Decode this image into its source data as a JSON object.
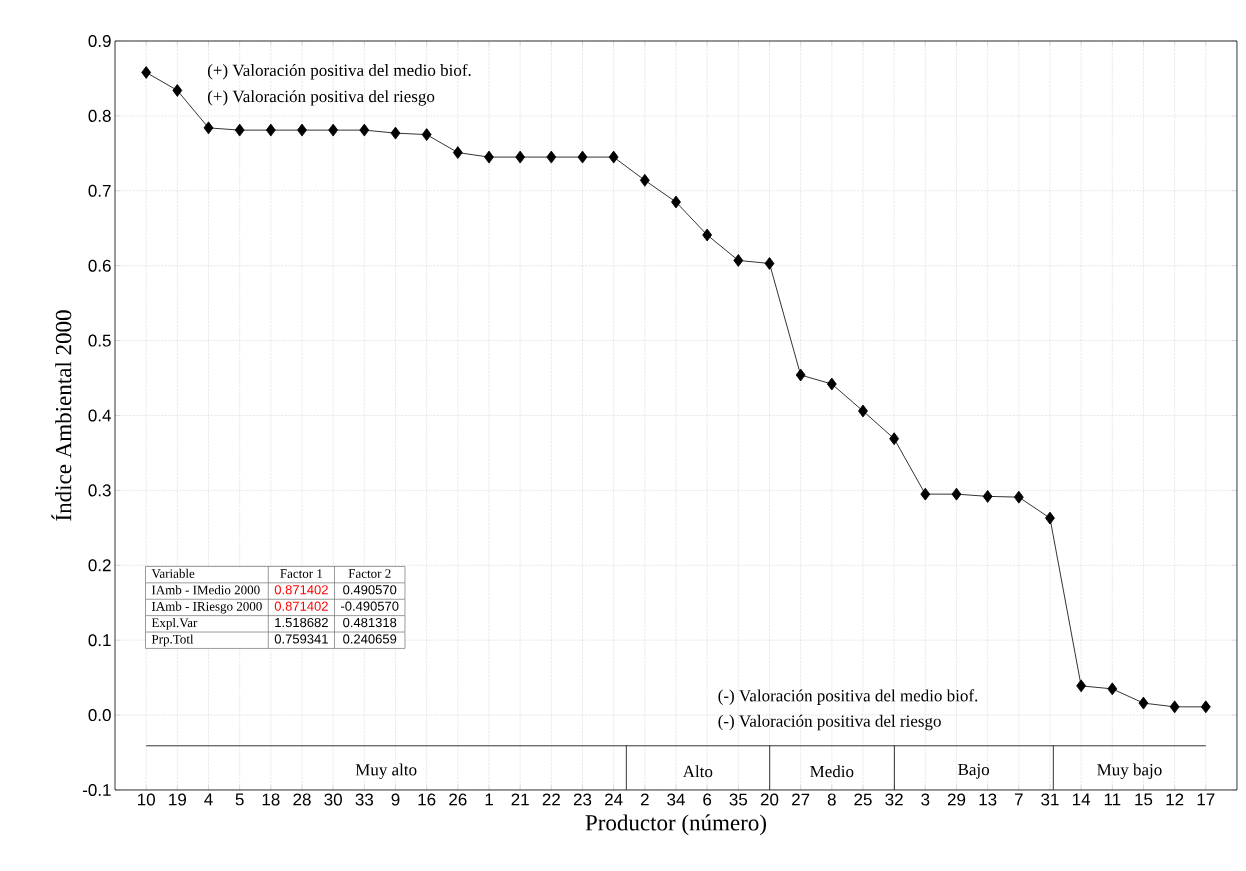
{
  "chart_data": {
    "type": "line",
    "xlabel": "Productor (número)",
    "ylabel": "Índice Ambiental 2000",
    "categories": [
      "10",
      "19",
      "4",
      "5",
      "18",
      "28",
      "30",
      "33",
      "9",
      "16",
      "26",
      "1",
      "21",
      "22",
      "23",
      "24",
      "2",
      "34",
      "6",
      "35",
      "20",
      "27",
      "8",
      "25",
      "32",
      "3",
      "29",
      "13",
      "7",
      "31",
      "14",
      "11",
      "15",
      "12",
      "17"
    ],
    "series": [
      {
        "color": "#000000",
        "values": [
          0.858,
          0.834,
          0.784,
          0.781,
          0.781,
          0.781,
          0.781,
          0.781,
          0.777,
          0.775,
          0.751,
          0.745,
          0.745,
          0.745,
          0.745,
          0.745,
          0.714,
          0.685,
          0.641,
          0.607,
          0.603,
          0.454,
          0.442,
          0.406,
          0.369,
          0.295,
          0.295,
          0.292,
          0.291,
          0.263,
          0.039,
          0.035,
          0.016,
          0.011,
          0.011
        ]
      }
    ],
    "ylim": [
      -0.1,
      0.9
    ],
    "yticks": [
      -0.1,
      {
        "value": 0,
        "label": "0.0"
      },
      0.1,
      0.2,
      0.3,
      0.4,
      0.5,
      0.6,
      0.7,
      0.8,
      0.9
    ],
    "grid": true,
    "marker": "diamond",
    "line_style": "solid",
    "ref_lines": [
      {
        "axis": "y",
        "value": -0.041,
        "color": "#000000"
      }
    ],
    "annotations": [
      "(+) Valoración positiva del medio biof.",
      "(+) Valoración positiva del riesgo",
      "(-) Valoración positiva del medio biof.",
      "(-) Valoración positiva del riesgo",
      "Variable",
      "Factor 1",
      "Factor 2",
      "IAmb - IMedio 2000",
      "0.871402",
      "0.490570",
      "IAmb - IRiesgo 2000",
      "0.871402",
      "-0.490570",
      "Expl.Var",
      "1.518682",
      "0.481318",
      "Prp.Totl",
      "0.759341",
      "0.240659",
      "Muy alto",
      "Alto",
      "Medio",
      "Bajo",
      "Muy bajo"
    ]
  }
}
